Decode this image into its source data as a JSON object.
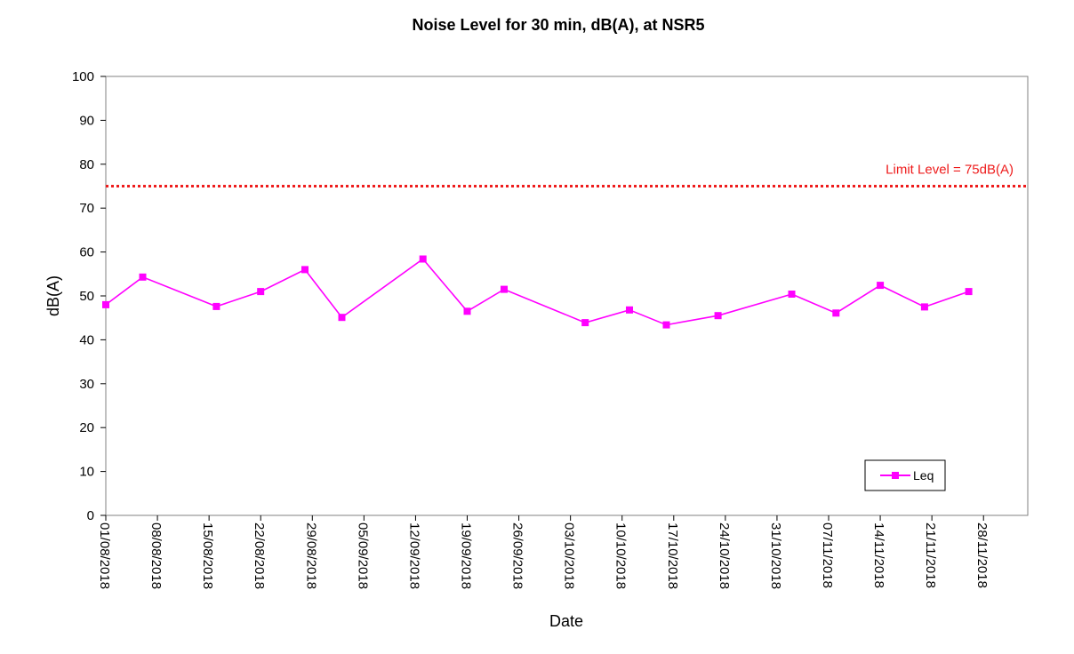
{
  "chart_data": {
    "type": "line",
    "title": "Noise Level for 30 min, dB(A), at NSR5",
    "xlabel": "Date",
    "ylabel": "dB(A)",
    "ylim": [
      0,
      100
    ],
    "yticks": [
      0,
      10,
      20,
      30,
      40,
      50,
      60,
      70,
      80,
      90,
      100
    ],
    "xlim": [
      "01/08/2018",
      "04/12/2018"
    ],
    "xticks": [
      "01/08/2018",
      "08/08/2018",
      "15/08/2018",
      "22/08/2018",
      "29/08/2018",
      "05/09/2018",
      "12/09/2018",
      "19/09/2018",
      "26/09/2018",
      "03/10/2018",
      "10/10/2018",
      "17/10/2018",
      "24/10/2018",
      "31/10/2018",
      "07/11/2018",
      "14/11/2018",
      "21/11/2018",
      "28/11/2018"
    ],
    "grid": false,
    "legend_position": "bottom-right",
    "series": [
      {
        "name": "Leq",
        "color": "#ff00ff",
        "marker": "square",
        "points": [
          {
            "x": "01/08/2018",
            "y": 48.0
          },
          {
            "x": "06/08/2018",
            "y": 54.3
          },
          {
            "x": "16/08/2018",
            "y": 47.6
          },
          {
            "x": "22/08/2018",
            "y": 51.0
          },
          {
            "x": "28/08/2018",
            "y": 56.0
          },
          {
            "x": "02/09/2018",
            "y": 45.1
          },
          {
            "x": "13/09/2018",
            "y": 58.4
          },
          {
            "x": "19/09/2018",
            "y": 46.5
          },
          {
            "x": "24/09/2018",
            "y": 51.5
          },
          {
            "x": "05/10/2018",
            "y": 43.9
          },
          {
            "x": "11/10/2018",
            "y": 46.8
          },
          {
            "x": "16/10/2018",
            "y": 43.4
          },
          {
            "x": "23/10/2018",
            "y": 45.5
          },
          {
            "x": "02/11/2018",
            "y": 50.4
          },
          {
            "x": "08/11/2018",
            "y": 46.1
          },
          {
            "x": "14/11/2018",
            "y": 52.4
          },
          {
            "x": "20/11/2018",
            "y": 47.5
          },
          {
            "x": "26/11/2018",
            "y": 51.0
          }
        ]
      }
    ],
    "reference_line": {
      "label": "Limit Level = 75dB(A)",
      "value": 75,
      "color": "#ee1c1c",
      "style": "dotted"
    }
  }
}
